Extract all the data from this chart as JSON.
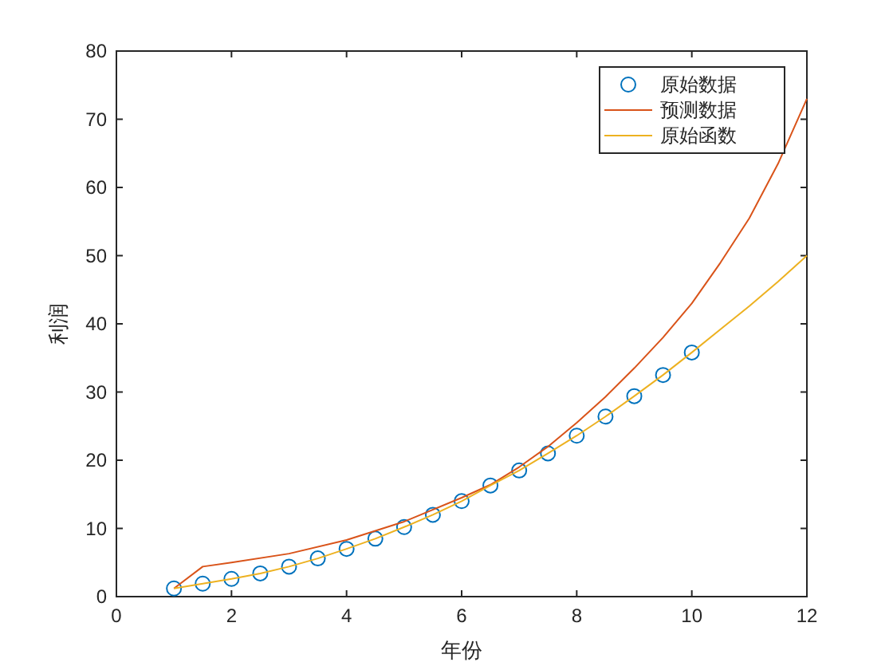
{
  "chart_data": {
    "type": "line",
    "xlabel": "年份",
    "ylabel": "利润",
    "xlim": [
      0,
      12
    ],
    "ylim": [
      0,
      80
    ],
    "xticks": [
      0,
      2,
      4,
      6,
      8,
      10,
      12
    ],
    "yticks": [
      0,
      10,
      20,
      30,
      40,
      50,
      60,
      70,
      80
    ],
    "grid": false,
    "legend": "top right",
    "series": [
      {
        "name": "原始数据",
        "type": "scatter",
        "marker": "circle",
        "color": "#0072bd",
        "x": [
          1,
          1.5,
          2,
          2.5,
          3,
          3.5,
          4,
          4.5,
          5,
          5.5,
          6,
          6.5,
          7,
          7.5,
          8,
          8.5,
          9,
          9.5,
          10
        ],
        "values": [
          1.2,
          1.9,
          2.6,
          3.4,
          4.4,
          5.6,
          7,
          8.5,
          10.2,
          12,
          14,
          16.3,
          18.5,
          21,
          23.6,
          26.4,
          29.4,
          32.5,
          35.8
        ]
      },
      {
        "name": "预测数据",
        "color": "#d95319",
        "x": [
          1,
          1.5,
          2,
          3,
          4,
          5,
          6,
          6.5,
          7,
          7.5,
          8,
          8.5,
          9,
          9.5,
          10,
          10.5,
          11,
          11.5,
          12
        ],
        "values": [
          1.2,
          4.4,
          5,
          6.3,
          8.3,
          11,
          14.5,
          16.4,
          19,
          22,
          25.5,
          29.3,
          33.5,
          38,
          43,
          49,
          55.5,
          63.5,
          73
        ]
      },
      {
        "name": "原始函数",
        "color": "#edb120",
        "x": [
          1,
          1.5,
          2,
          2.5,
          3,
          3.5,
          4,
          4.5,
          5,
          5.5,
          6,
          6.5,
          7,
          7.5,
          8,
          8.5,
          9,
          9.5,
          10,
          10.5,
          11,
          11.5,
          12
        ],
        "values": [
          1.2,
          1.9,
          2.6,
          3.4,
          4.4,
          5.6,
          7,
          8.5,
          10.2,
          12,
          14,
          16.3,
          18.5,
          21,
          23.6,
          26.4,
          29.4,
          32.5,
          35.8,
          39.2,
          42.6,
          46.2,
          50
        ]
      }
    ]
  }
}
